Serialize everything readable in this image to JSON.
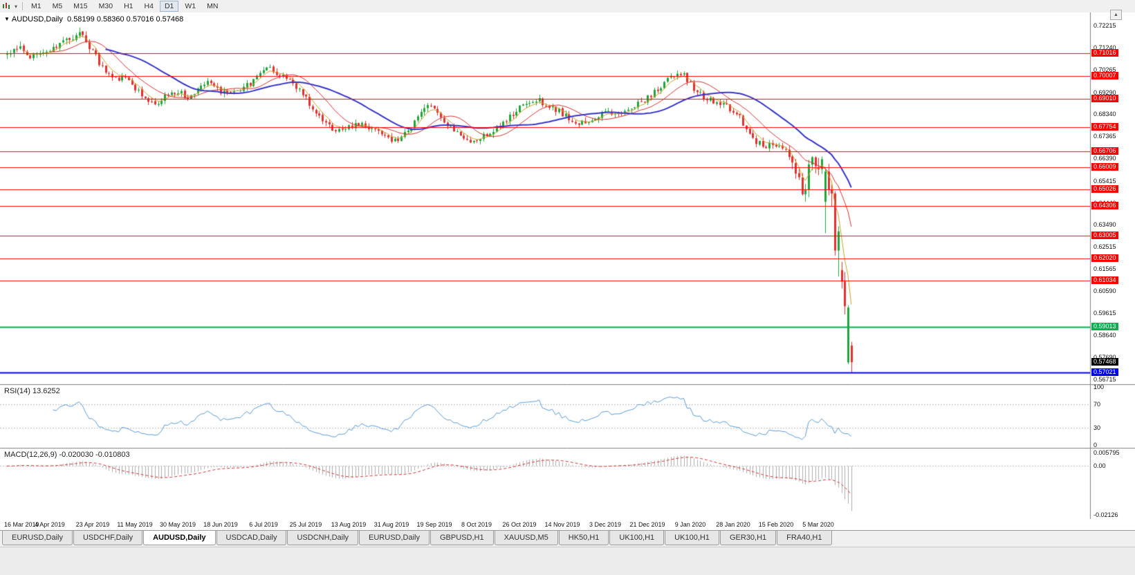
{
  "toolbar": {
    "timeframes": [
      "M1",
      "M5",
      "M15",
      "M30",
      "H1",
      "H4",
      "D1",
      "W1",
      "MN"
    ],
    "active_timeframe": "D1"
  },
  "title": {
    "caret": "▼",
    "symbol": "AUDUSD,Daily",
    "ohlc": "0.58199 0.58360 0.57016 0.57468"
  },
  "colors": {
    "up": "#1FA33C",
    "down": "#E03030",
    "level_red": "#FF0000",
    "level_green": "#00B050",
    "level_blue": "#0000FF",
    "current_bg": "#000000",
    "ma_fast_gold": "#C9A227",
    "ma_mid_red": "#D63031",
    "ma_slow_blue": "#3535C8",
    "rsi_line": "#5B9BD5",
    "macd_hist": "#ADADAD",
    "macd_signal": "#D23030"
  },
  "chart_data": {
    "type": "candlestick",
    "symbol": "AUDUSD",
    "timeframe": "Daily",
    "last_ohlc": {
      "open": "0.58199",
      "high": "0.58360",
      "low": "0.57016",
      "close": "0.57468"
    },
    "current_price": "0.57468",
    "price_ticks": [
      "0.72215",
      "0.71240",
      "0.70265",
      "0.69290",
      "0.68340",
      "0.67365",
      "0.66390",
      "0.65415",
      "0.64440",
      "0.63490",
      "0.62515",
      "0.61565",
      "0.60590",
      "0.59615",
      "0.58640",
      "0.57690",
      "0.56715"
    ],
    "levels": [
      {
        "price": 0.71016,
        "label": "0.71016",
        "kind": "red"
      },
      {
        "price": 0.70007,
        "label": "0.70007",
        "kind": "red"
      },
      {
        "price": 0.6901,
        "label": "0.69010",
        "kind": "red"
      },
      {
        "price": 0.67754,
        "label": "0.67754",
        "kind": "red"
      },
      {
        "price": 0.66706,
        "label": "0.66706",
        "kind": "red"
      },
      {
        "price": 0.66009,
        "label": "0.66009",
        "kind": "red"
      },
      {
        "price": 0.65026,
        "label": "0.65026",
        "kind": "red"
      },
      {
        "price": 0.64306,
        "label": "0.64306",
        "kind": "red"
      },
      {
        "price": 0.63005,
        "label": "0.63005",
        "kind": "red"
      },
      {
        "price": 0.6202,
        "label": "0.62020",
        "kind": "red"
      },
      {
        "price": 0.61034,
        "label": "0.61034",
        "kind": "red"
      },
      {
        "price": 0.59013,
        "label": "0.59013",
        "kind": "green"
      },
      {
        "price": 0.57021,
        "label": "0.57021",
        "kind": "blue"
      }
    ],
    "dates": [
      "16 Mar 2019",
      "4 Apr 2019",
      "23 Apr 2019",
      "11 May 2019",
      "30 May 2019",
      "18 Jun 2019",
      "6 Jul 2019",
      "25 Jul 2019",
      "13 Aug 2019",
      "31 Aug 2019",
      "19 Sep 2019",
      "8 Oct 2019",
      "26 Oct 2019",
      "14 Nov 2019",
      "3 Dec 2019",
      "21 Dec 2019",
      "9 Jan 2020",
      "28 Jan 2020",
      "15 Feb 2020",
      "5 Mar 2020"
    ],
    "series": {
      "count": 258,
      "seed": 12,
      "anchors": [
        [
          0,
          0.7105
        ],
        [
          4,
          0.713
        ],
        [
          7,
          0.7085
        ],
        [
          10,
          0.711
        ],
        [
          13,
          0.7122
        ],
        [
          16,
          0.7148
        ],
        [
          19,
          0.7168
        ],
        [
          22,
          0.7185
        ],
        [
          24,
          0.715
        ],
        [
          26,
          0.7115
        ],
        [
          28,
          0.7058
        ],
        [
          31,
          0.7008
        ],
        [
          34,
          0.699
        ],
        [
          36,
          0.7005
        ],
        [
          39,
          0.6948
        ],
        [
          42,
          0.6905
        ],
        [
          45,
          0.688
        ],
        [
          48,
          0.6912
        ],
        [
          52,
          0.693
        ],
        [
          55,
          0.6908
        ],
        [
          58,
          0.6945
        ],
        [
          61,
          0.6975
        ],
        [
          63,
          0.6958
        ],
        [
          65,
          0.693
        ],
        [
          68,
          0.6924
        ],
        [
          71,
          0.6945
        ],
        [
          74,
          0.6965
        ],
        [
          77,
          0.7005
        ],
        [
          79,
          0.7038
        ],
        [
          82,
          0.7012
        ],
        [
          85,
          0.6985
        ],
        [
          88,
          0.6955
        ],
        [
          91,
          0.69
        ],
        [
          94,
          0.6845
        ],
        [
          97,
          0.6798
        ],
        [
          100,
          0.676
        ],
        [
          103,
          0.6772
        ],
        [
          106,
          0.6792
        ],
        [
          109,
          0.678
        ],
        [
          112,
          0.6758
        ],
        [
          115,
          0.674
        ],
        [
          117,
          0.6724
        ],
        [
          119,
          0.6714
        ],
        [
          122,
          0.676
        ],
        [
          125,
          0.6822
        ],
        [
          128,
          0.6868
        ],
        [
          130,
          0.685
        ],
        [
          133,
          0.68
        ],
        [
          136,
          0.6768
        ],
        [
          139,
          0.6738
        ],
        [
          142,
          0.6708
        ],
        [
          144,
          0.673
        ],
        [
          147,
          0.6756
        ],
        [
          150,
          0.6786
        ],
        [
          153,
          0.6826
        ],
        [
          156,
          0.6862
        ],
        [
          159,
          0.688
        ],
        [
          162,
          0.6892
        ],
        [
          165,
          0.687
        ],
        [
          168,
          0.6846
        ],
        [
          171,
          0.6812
        ],
        [
          174,
          0.6796
        ],
        [
          177,
          0.679
        ],
        [
          180,
          0.6826
        ],
        [
          183,
          0.6842
        ],
        [
          186,
          0.683
        ],
        [
          189,
          0.6856
        ],
        [
          192,
          0.688
        ],
        [
          195,
          0.6906
        ],
        [
          198,
          0.694
        ],
        [
          201,
          0.698
        ],
        [
          204,
          0.7016
        ],
        [
          206,
          0.7002
        ],
        [
          208,
          0.6966
        ],
        [
          210,
          0.693
        ],
        [
          213,
          0.69
        ],
        [
          216,
          0.6886
        ],
        [
          219,
          0.6866
        ],
        [
          222,
          0.684
        ],
        [
          225,
          0.6772
        ],
        [
          228,
          0.6712
        ],
        [
          231,
          0.6696
        ],
        [
          234,
          0.6702
        ],
        [
          237,
          0.6682
        ],
        [
          239,
          0.6622
        ],
        [
          241,
          0.6552
        ],
        [
          242,
          0.6482
        ],
        [
          243,
          0.6516
        ],
        [
          244,
          0.66
        ],
        [
          245,
          0.6646
        ],
        [
          246,
          0.6625
        ]
      ],
      "tail_start": 247,
      "tail": [
        [
          0.66,
          0.6642,
          0.6566,
          0.6592
        ],
        [
          0.6592,
          0.6648,
          0.6572,
          0.6636
        ],
        [
          0.645,
          0.6602,
          0.6312,
          0.6582
        ],
        [
          0.6582,
          0.6616,
          0.6478,
          0.6502
        ],
        [
          0.6502,
          0.6526,
          0.643,
          0.6486
        ],
        [
          0.6486,
          0.6496,
          0.6214,
          0.6236
        ],
        [
          0.6236,
          0.6342,
          0.6122,
          0.632
        ],
        [
          0.615,
          0.6186,
          0.607,
          0.61
        ],
        [
          0.61,
          0.6142,
          0.5956,
          0.5992
        ],
        [
          0.5746,
          0.5996,
          0.5738,
          0.5986
        ],
        [
          0.58199,
          0.5836,
          0.57016,
          0.57468
        ]
      ]
    },
    "moving_averages": [
      {
        "name": "fast",
        "method": "ema",
        "period": 5,
        "color_key": "ma_fast_gold",
        "width": 1
      },
      {
        "name": "mid",
        "method": "sma",
        "period": 13,
        "color_key": "ma_mid_red",
        "width": 1
      },
      {
        "name": "slow",
        "method": "sma",
        "period": 30,
        "color_key": "ma_slow_blue",
        "width": 2
      }
    ],
    "indicators": {
      "rsi": {
        "label": "RSI(14)",
        "value": "13.6252",
        "period": 14,
        "ticks": [
          {
            "value": 100,
            "label": "100"
          },
          {
            "value": 70,
            "label": "70"
          },
          {
            "value": 30,
            "label": "30"
          },
          {
            "value": 0,
            "label": "0"
          }
        ],
        "dashed_levels": [
          70,
          30
        ]
      },
      "macd": {
        "label": "MACD(12,26,9)",
        "values": "-0.020030 -0.010803",
        "fast": 12,
        "slow": 26,
        "signal": 9,
        "scale_max": 0.005795,
        "scale_min": -0.02126,
        "ticks": [
          {
            "value": 0.005795,
            "label": "0.005795"
          },
          {
            "value": 0,
            "label": "0.00"
          },
          {
            "value": -0.02126,
            "label": "-0.02126"
          }
        ]
      }
    }
  },
  "tabs": {
    "active_index": 2,
    "items": [
      "EURUSD,Daily",
      "USDCHF,Daily",
      "AUDUSD,Daily",
      "USDCAD,Daily",
      "USDCNH,Daily",
      "EURUSD,Daily",
      "GBPUSD,H1",
      "XAUUSD,M5",
      "HK50,H1",
      "UK100,H1",
      "UK100,H1",
      "GER30,H1",
      "FRA40,H1"
    ]
  }
}
